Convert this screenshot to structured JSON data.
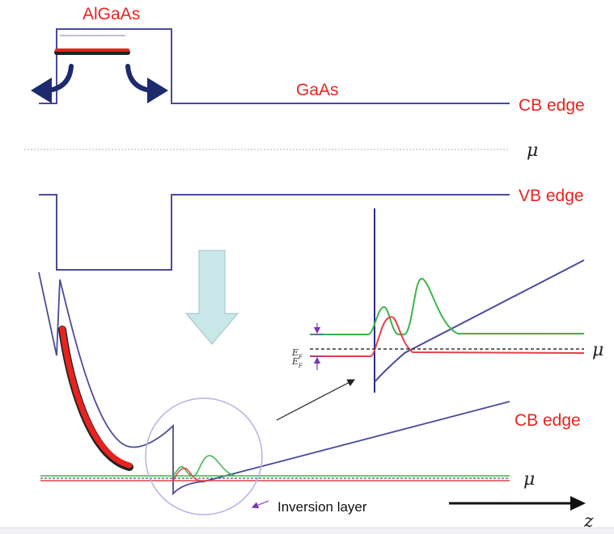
{
  "labels": {
    "algaas": "AlGaAs",
    "gaas": "GaAs",
    "cb_edge_top": "CB edge",
    "vb_edge": "VB edge",
    "cb_edge_bottom": "CB edge",
    "mu_top": "μ",
    "mu_inset": "μ",
    "mu_bottom": "μ",
    "ef": "E",
    "ef_sub": "F",
    "inversion_layer": "Inversion layer",
    "z_axis": "z"
  },
  "colors": {
    "band": "#4a4a9c",
    "label_red": "#e8231f",
    "wave_green": "#3cb44b",
    "wave_red": "#e0404a",
    "arrow_navy": "#1d2a6e",
    "down_arrow_fill": "#c9e6e9",
    "magnifier": "#b3b3e6",
    "marker_purple": "#7b35b8"
  }
}
